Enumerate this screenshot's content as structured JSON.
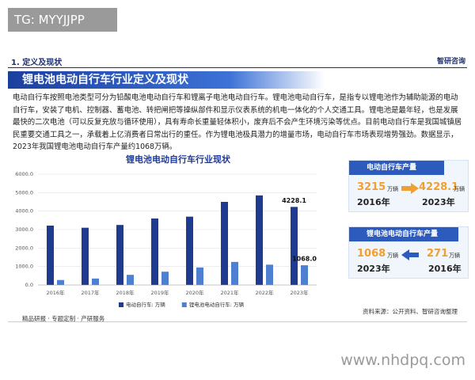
{
  "watermark": "TG: MYYJJPP",
  "section": "1. 定义及现状",
  "brand": "智研咨询",
  "title": "锂电池电动自行车行业定义及现状",
  "paragraph": "电动自行车按照电池类型可分为铅酸电池电动自行车和锂离子电池电动自行车。锂电池电动自行车，是指专以锂电池作为辅助能源的电动自行车，安装了电机、控制器、蓄电池、转把闸把等操纵部件和显示仪表系统的机电一体化的个人交通工具。锂电池是最年轻，也是发展最快的二次电池（可以反复充放与循环使用），具有寿命长重量轻体积小，废弃后不会产生环境污染等优点。目前电动自行车是我国城镇居民重要交通工具之一，承载着上亿消费者日常出行的重任。作为锂电池极具潜力的增量市场，电动自行车市场表现增势强劲。数据显示，2023年我国锂电池电动自行车产量约1068万辆。",
  "chart_data": {
    "type": "bar",
    "title": "锂电池电动自行车行业现状",
    "categories": [
      "2016年",
      "2017年",
      "2018年",
      "2019年",
      "2020年",
      "2021年",
      "2022年",
      "2023年"
    ],
    "series": [
      {
        "name": "电动自行车: 万辆",
        "color": "#1f3b8f",
        "values": [
          3215,
          3100,
          3250,
          3600,
          3700,
          4500,
          4850,
          4228.1
        ],
        "value_labels": [
          null,
          null,
          null,
          null,
          null,
          null,
          null,
          "4228.1"
        ]
      },
      {
        "name": "锂电池电动自行车: 万辆",
        "color": "#4f7fd1",
        "values": [
          271,
          350,
          550,
          720,
          950,
          1250,
          1100,
          1068
        ],
        "value_labels": [
          null,
          null,
          null,
          null,
          null,
          null,
          null,
          "1068.0"
        ]
      }
    ],
    "ylim": [
      0,
      6000
    ],
    "yticks": [
      {
        "value": 0,
        "label": "0.0"
      },
      {
        "value": 1000,
        "label": "1000.0"
      },
      {
        "value": 2000,
        "label": "2000.0"
      },
      {
        "value": 3000,
        "label": "3000.0"
      },
      {
        "value": 4000,
        "label": "4000.0"
      },
      {
        "value": 5000,
        "label": "5000.0"
      },
      {
        "value": 6000,
        "label": "6000.0"
      }
    ],
    "grid": true
  },
  "cards": [
    {
      "title": "电动自行车产量",
      "from": {
        "value": "3215",
        "unit": "万辆",
        "year": "2016年"
      },
      "to": {
        "value": "4228.1",
        "unit": "万辆",
        "year": "2023年"
      }
    },
    {
      "title": "锂电池电动自行车产量",
      "from": {
        "value": "1068",
        "unit": "万辆",
        "year": "2023年"
      },
      "to": {
        "value": "271",
        "unit": "万辆",
        "year": "2016年"
      }
    }
  ],
  "footer": "精品研报 · 专题定制 · 产研服务",
  "source": "资料来源：公开资料、智研咨询整理",
  "site": "www.nhdpq.com"
}
